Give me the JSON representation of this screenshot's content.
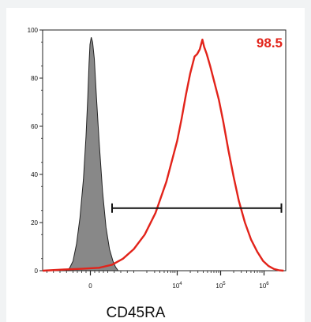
{
  "chart_data": {
    "type": "area",
    "title": "",
    "xlabel": "CD45RA",
    "ylabel": "",
    "xscale": "biexponential",
    "ylim": [
      0,
      100
    ],
    "y_ticks": [
      "0",
      "20",
      "40",
      "60",
      "80",
      "100"
    ],
    "x_ticks": [
      {
        "main": "0",
        "sup": ""
      },
      {
        "main": "10",
        "sup": "4"
      },
      {
        "main": "10",
        "sup": "5"
      },
      {
        "main": "10",
        "sup": "6"
      }
    ],
    "series": [
      {
        "style": "filled",
        "color": "#888888",
        "points": [
          [
            -0.6,
            0
          ],
          [
            -0.48,
            1
          ],
          [
            -0.4,
            4
          ],
          [
            -0.32,
            11
          ],
          [
            -0.24,
            22
          ],
          [
            -0.16,
            38
          ],
          [
            -0.1,
            56
          ],
          [
            -0.06,
            72
          ],
          [
            -0.03,
            86
          ],
          [
            -0.01,
            94
          ],
          [
            0.02,
            97
          ],
          [
            0.05,
            95
          ],
          [
            0.09,
            88
          ],
          [
            0.14,
            72
          ],
          [
            0.2,
            54
          ],
          [
            0.28,
            33
          ],
          [
            0.36,
            18
          ],
          [
            0.44,
            9
          ],
          [
            0.52,
            4
          ],
          [
            0.58,
            1.5
          ],
          [
            0.64,
            0
          ]
        ]
      },
      {
        "style": "outline",
        "color": "#e2231a",
        "points": [
          [
            -1.1,
            0
          ],
          [
            -0.6,
            0.5
          ],
          [
            -0.2,
            0.8
          ],
          [
            0.2,
            1.2
          ],
          [
            0.5,
            2.5
          ],
          [
            0.75,
            5
          ],
          [
            1.0,
            9
          ],
          [
            1.25,
            15
          ],
          [
            1.5,
            24
          ],
          [
            1.75,
            37
          ],
          [
            2.0,
            54
          ],
          [
            2.1,
            63
          ],
          [
            2.2,
            73
          ],
          [
            2.3,
            82
          ],
          [
            2.4,
            89
          ],
          [
            2.46,
            90
          ],
          [
            2.52,
            92
          ],
          [
            2.58,
            96
          ],
          [
            2.62,
            93
          ],
          [
            2.68,
            90
          ],
          [
            2.76,
            85
          ],
          [
            2.86,
            78
          ],
          [
            2.96,
            71
          ],
          [
            3.06,
            62
          ],
          [
            3.18,
            50
          ],
          [
            3.3,
            39
          ],
          [
            3.42,
            29
          ],
          [
            3.56,
            20
          ],
          [
            3.7,
            13
          ],
          [
            3.84,
            8
          ],
          [
            3.98,
            4
          ],
          [
            4.1,
            2
          ],
          [
            4.22,
            0.8
          ],
          [
            4.34,
            0.2
          ],
          [
            4.45,
            0
          ]
        ]
      }
    ],
    "gate": {
      "value": "98.5",
      "color": "#e2231a",
      "x_start": 0.5,
      "x_end": 4.4,
      "y": 26
    }
  }
}
